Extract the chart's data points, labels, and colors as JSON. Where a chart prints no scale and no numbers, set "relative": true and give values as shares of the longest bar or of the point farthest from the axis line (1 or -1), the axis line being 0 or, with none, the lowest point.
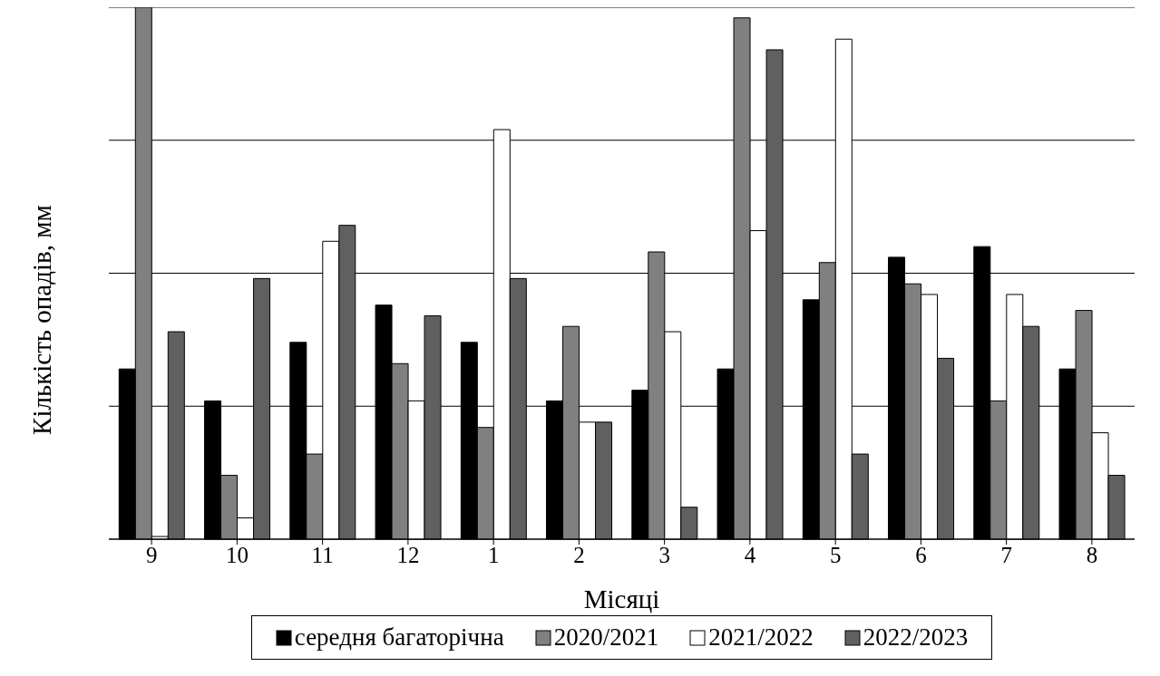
{
  "chart_data": {
    "type": "bar",
    "relative": true,
    "xlabel": "Місяці",
    "ylabel": "Кількість опадів, мм",
    "categories": [
      "9",
      "10",
      "11",
      "12",
      "1",
      "2",
      "3",
      "4",
      "5",
      "6",
      "7",
      "8"
    ],
    "series": [
      {
        "name": "середня багаторічна",
        "color": "#000000",
        "values": [
          0.32,
          0.26,
          0.37,
          0.44,
          0.37,
          0.26,
          0.28,
          0.32,
          0.45,
          0.53,
          0.55,
          0.32
        ]
      },
      {
        "name": "2020/2021",
        "color": "#808080",
        "values": [
          1,
          0.12,
          0.16,
          0.33,
          0.21,
          0.4,
          0.54,
          0.98,
          0.52,
          0.48,
          0.26,
          0.43
        ]
      },
      {
        "name": "2021/2022",
        "color": "#ffffff",
        "values": [
          0.005,
          0.04,
          0.56,
          0.26,
          0.77,
          0.22,
          0.39,
          0.58,
          0.94,
          0.46,
          0.46,
          0.2
        ]
      },
      {
        "name": "2022/2023",
        "color": "#606060",
        "values": [
          0.39,
          0.49,
          0.59,
          0.42,
          0.49,
          0.22,
          0.06,
          0.92,
          0.16,
          0.34,
          0.4,
          0.12
        ]
      }
    ],
    "grid": "y",
    "legend": "bottom"
  }
}
